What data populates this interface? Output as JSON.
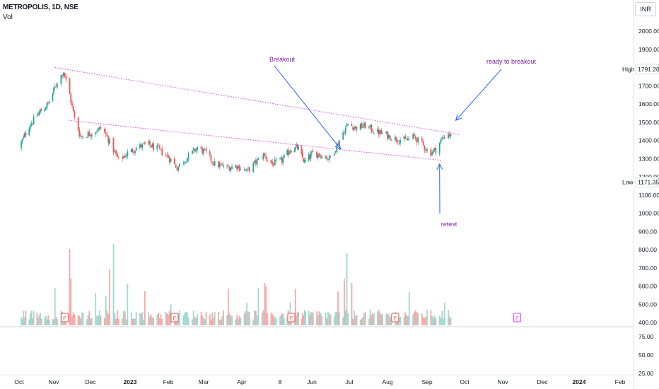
{
  "header": {
    "symbol": "METROPOLIS, 1D, NSE",
    "volume_label": "Vol",
    "currency_button": "INR"
  },
  "chart_data": {
    "type": "candlestick",
    "title": "METROPOLIS, 1D, NSE",
    "price_axis": {
      "ticks": [
        "2000.00",
        "1900.00",
        "1800.00",
        "1700.00",
        "1600.00",
        "1500.00",
        "1400.00",
        "1300.00",
        "1200.00",
        "1100.00",
        "1000.00",
        "900.00",
        "800.00",
        "700.00",
        "600.00",
        "500.00",
        "400.00"
      ],
      "range": [
        388,
        2058
      ]
    },
    "high_marker": {
      "label": "High",
      "value": "1791.20"
    },
    "low_marker": {
      "label": "Low",
      "value": "1171.35"
    },
    "oscillator_axis": {
      "ticks": [
        "75.00",
        "50.00",
        "25.00"
      ],
      "range": [
        23,
        88
      ]
    },
    "time_axis": [
      "Oct",
      "Nov",
      "Dec",
      "2023",
      "Feb",
      "Mar",
      "Apr",
      "8",
      "Jun",
      "Jul",
      "Aug",
      "Sep",
      "Oct",
      "Nov",
      "Dec",
      "2024",
      "Feb"
    ],
    "price_path": [
      [
        "2022-10-01",
        1360
      ],
      [
        "2022-10-10",
        1480
      ],
      [
        "2022-10-20",
        1560
      ],
      [
        "2022-10-27",
        1600
      ],
      [
        "2022-11-04",
        1720
      ],
      [
        "2022-11-09",
        1780
      ],
      [
        "2022-11-14",
        1650
      ],
      [
        "2022-11-18",
        1520
      ],
      [
        "2022-11-23",
        1420
      ],
      [
        "2022-12-01",
        1440
      ],
      [
        "2022-12-10",
        1470
      ],
      [
        "2022-12-16",
        1390
      ],
      [
        "2022-12-23",
        1290
      ],
      [
        "2022-12-30",
        1330
      ],
      [
        "2023-01-06",
        1360
      ],
      [
        "2023-01-15",
        1380
      ],
      [
        "2023-01-24",
        1350
      ],
      [
        "2023-02-01",
        1310
      ],
      [
        "2023-02-08",
        1250
      ],
      [
        "2023-02-15",
        1300
      ],
      [
        "2023-02-24",
        1360
      ],
      [
        "2023-03-03",
        1330
      ],
      [
        "2023-03-10",
        1270
      ],
      [
        "2023-03-20",
        1250
      ],
      [
        "2023-03-28",
        1260
      ],
      [
        "2023-04-05",
        1230
      ],
      [
        "2023-04-12",
        1280
      ],
      [
        "2023-04-18",
        1320
      ],
      [
        "2023-04-25",
        1270
      ],
      [
        "2023-05-03",
        1290
      ],
      [
        "2023-05-11",
        1350
      ],
      [
        "2023-05-18",
        1360
      ],
      [
        "2023-05-25",
        1280
      ],
      [
        "2023-06-02",
        1330
      ],
      [
        "2023-06-09",
        1320
      ],
      [
        "2023-06-15",
        1300
      ],
      [
        "2023-06-20",
        1360
      ],
      [
        "2023-06-25",
        1430
      ],
      [
        "2023-06-30",
        1490
      ],
      [
        "2023-07-06",
        1470
      ],
      [
        "2023-07-14",
        1480
      ],
      [
        "2023-07-22",
        1450
      ],
      [
        "2023-07-31",
        1430
      ],
      [
        "2023-08-07",
        1410
      ],
      [
        "2023-08-15",
        1400
      ],
      [
        "2023-08-22",
        1420
      ],
      [
        "2023-08-28",
        1380
      ],
      [
        "2023-09-03",
        1330
      ],
      [
        "2023-09-08",
        1350
      ],
      [
        "2023-09-13",
        1410
      ],
      [
        "2023-09-18",
        1440
      ],
      [
        "2023-09-20",
        1420
      ]
    ],
    "trendlines": [
      {
        "name": "upper",
        "from": [
          "2022-11-02",
          1800
        ],
        "to": [
          "2023-09-27",
          1432
        ],
        "color": "#e040fb",
        "style": "dotted"
      },
      {
        "name": "lower",
        "from": [
          "2022-11-13",
          1510
        ],
        "to": [
          "2023-09-13",
          1290
        ],
        "color": "#e040fb",
        "style": "dotted"
      }
    ],
    "annotations": [
      {
        "text": "Breakout",
        "color": "#7b1fa2",
        "arrow_to": [
          "2023-06-24",
          1352
        ]
      },
      {
        "text": "ready to breakout",
        "color": "#7b1fa2",
        "arrow_to": [
          "2023-09-24",
          1510
        ]
      },
      {
        "text": "retest",
        "color": "#7b1fa2",
        "arrow_to": [
          "2023-09-11",
          1271
        ]
      }
    ],
    "earnings_markers": [
      {
        "label": "E",
        "date": "2022-11-10",
        "color": "#ef5350"
      },
      {
        "label": "E",
        "date": "2023-02-06",
        "color": "#ef5350"
      },
      {
        "label": "E",
        "date": "2023-05-12",
        "color": "#ef5350"
      },
      {
        "label": "E",
        "date": "2023-08-07",
        "color": "#ef5350"
      },
      {
        "label": "E",
        "date": "2023-11-12",
        "color": "#e040fb"
      }
    ],
    "colors": {
      "up": "#26a69a",
      "down": "#ef5350",
      "trendline": "#e040fb",
      "arrow": "#2962ff",
      "annotation": "#7b1fa2"
    }
  }
}
